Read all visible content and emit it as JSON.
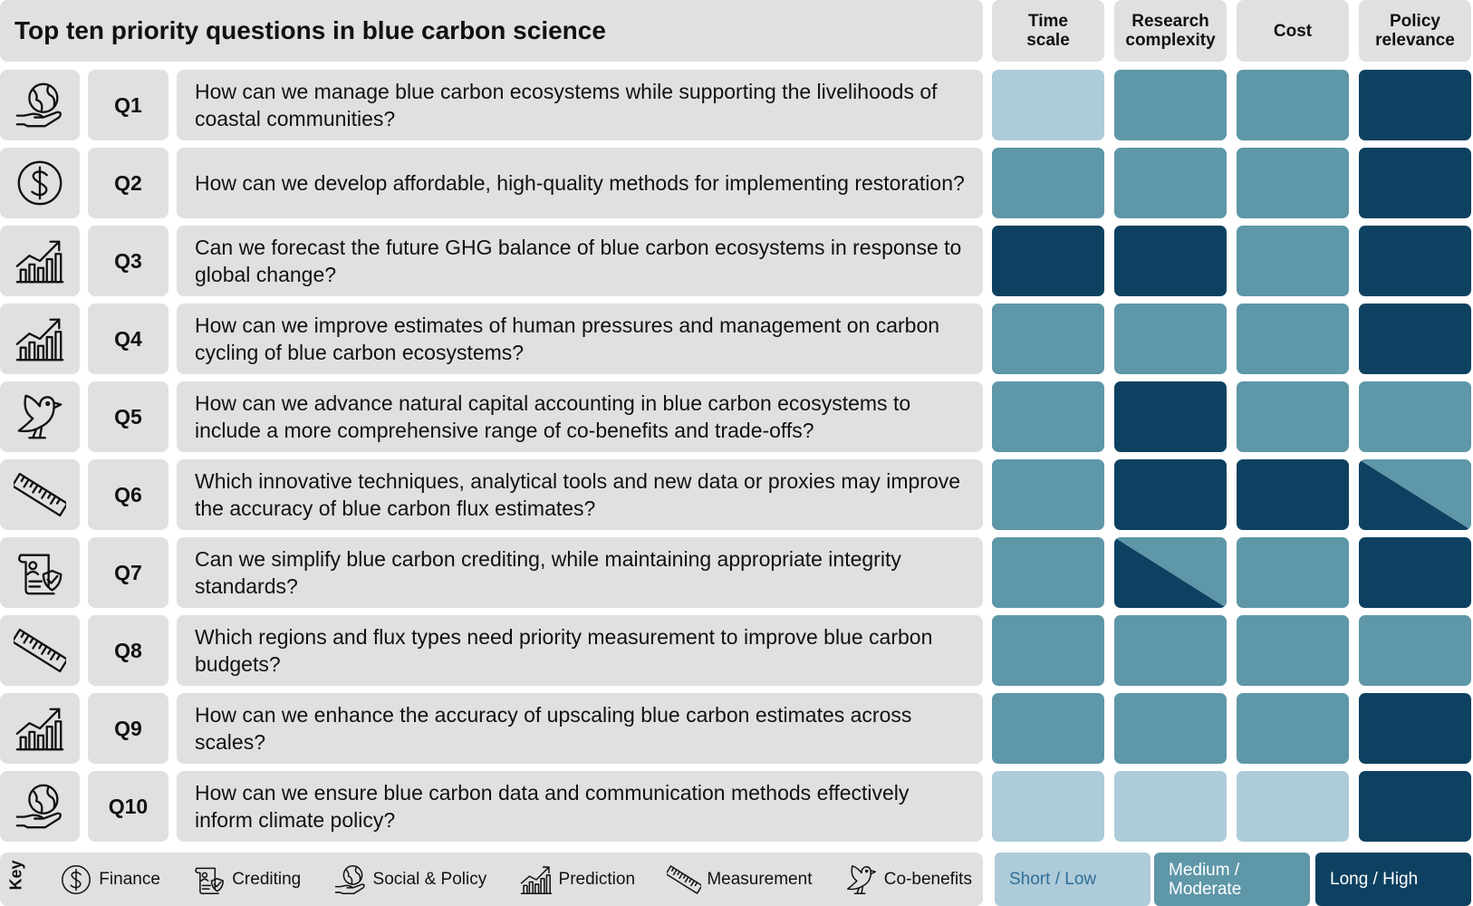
{
  "title": "Top ten priority questions in blue carbon science",
  "columns": [
    "Time scale",
    "Research complexity",
    "Cost",
    "Policy relevance"
  ],
  "rows": [
    {
      "id": "Q1",
      "icon": 2,
      "question": "How can we manage blue carbon ecosystems while supporting the livelihoods of coastal communities?",
      "ratings": [
        0,
        1,
        1,
        2
      ]
    },
    {
      "id": "Q2",
      "icon": 0,
      "question": "How can we develop affordable, high-quality methods for implementing restoration?",
      "ratings": [
        1,
        1,
        1,
        2
      ]
    },
    {
      "id": "Q3",
      "icon": 3,
      "question": "Can we forecast the future GHG balance of blue carbon ecosystems in response to global change?",
      "ratings": [
        2,
        2,
        1,
        2
      ]
    },
    {
      "id": "Q4",
      "icon": 3,
      "question": "How can we improve estimates of human pressures and management on carbon cycling of blue carbon ecosystems?",
      "ratings": [
        1,
        1,
        1,
        2
      ]
    },
    {
      "id": "Q5",
      "icon": 5,
      "question": "How can we advance natural capital accounting in blue carbon ecosystems to include a more comprehensive range of co-benefits and trade-offs?",
      "ratings": [
        1,
        2,
        1,
        1
      ]
    },
    {
      "id": "Q6",
      "icon": 4,
      "question": "Which innovative techniques, analytical tools and new data or proxies may improve the accuracy of blue carbon flux estimates?",
      "ratings": [
        1,
        2,
        2,
        [
          2,
          1
        ]
      ]
    },
    {
      "id": "Q7",
      "icon": 1,
      "question": "Can we simplify blue carbon crediting, while maintaining appropriate integrity standards?",
      "ratings": [
        1,
        [
          2,
          1
        ],
        1,
        2
      ]
    },
    {
      "id": "Q8",
      "icon": 4,
      "question": "Which regions and flux types need priority measurement to improve blue carbon budgets?",
      "ratings": [
        1,
        1,
        1,
        1
      ]
    },
    {
      "id": "Q9",
      "icon": 3,
      "question": "How can we enhance the accuracy of upscaling blue carbon estimates across scales?",
      "ratings": [
        1,
        1,
        1,
        2
      ]
    },
    {
      "id": "Q10",
      "icon": 2,
      "question": "How can we ensure blue carbon data and communication methods effectively inform climate policy?",
      "ratings": [
        0,
        0,
        0,
        2
      ]
    }
  ],
  "key": {
    "label": "Key",
    "icons": [
      "Finance",
      "Crediting",
      "Social & Policy",
      "Prediction",
      "Measurement",
      "Co-benefits"
    ]
  },
  "legend": [
    {
      "label": "Short / Low",
      "color": "#aecbd9",
      "text_color": "#2f6f98"
    },
    {
      "label": "Medium / Moderate",
      "color": "#5e97a8",
      "text_color": "#ffffff"
    },
    {
      "label": "Long / High",
      "color": "#0e4161",
      "text_color": "#ffffff"
    }
  ]
}
